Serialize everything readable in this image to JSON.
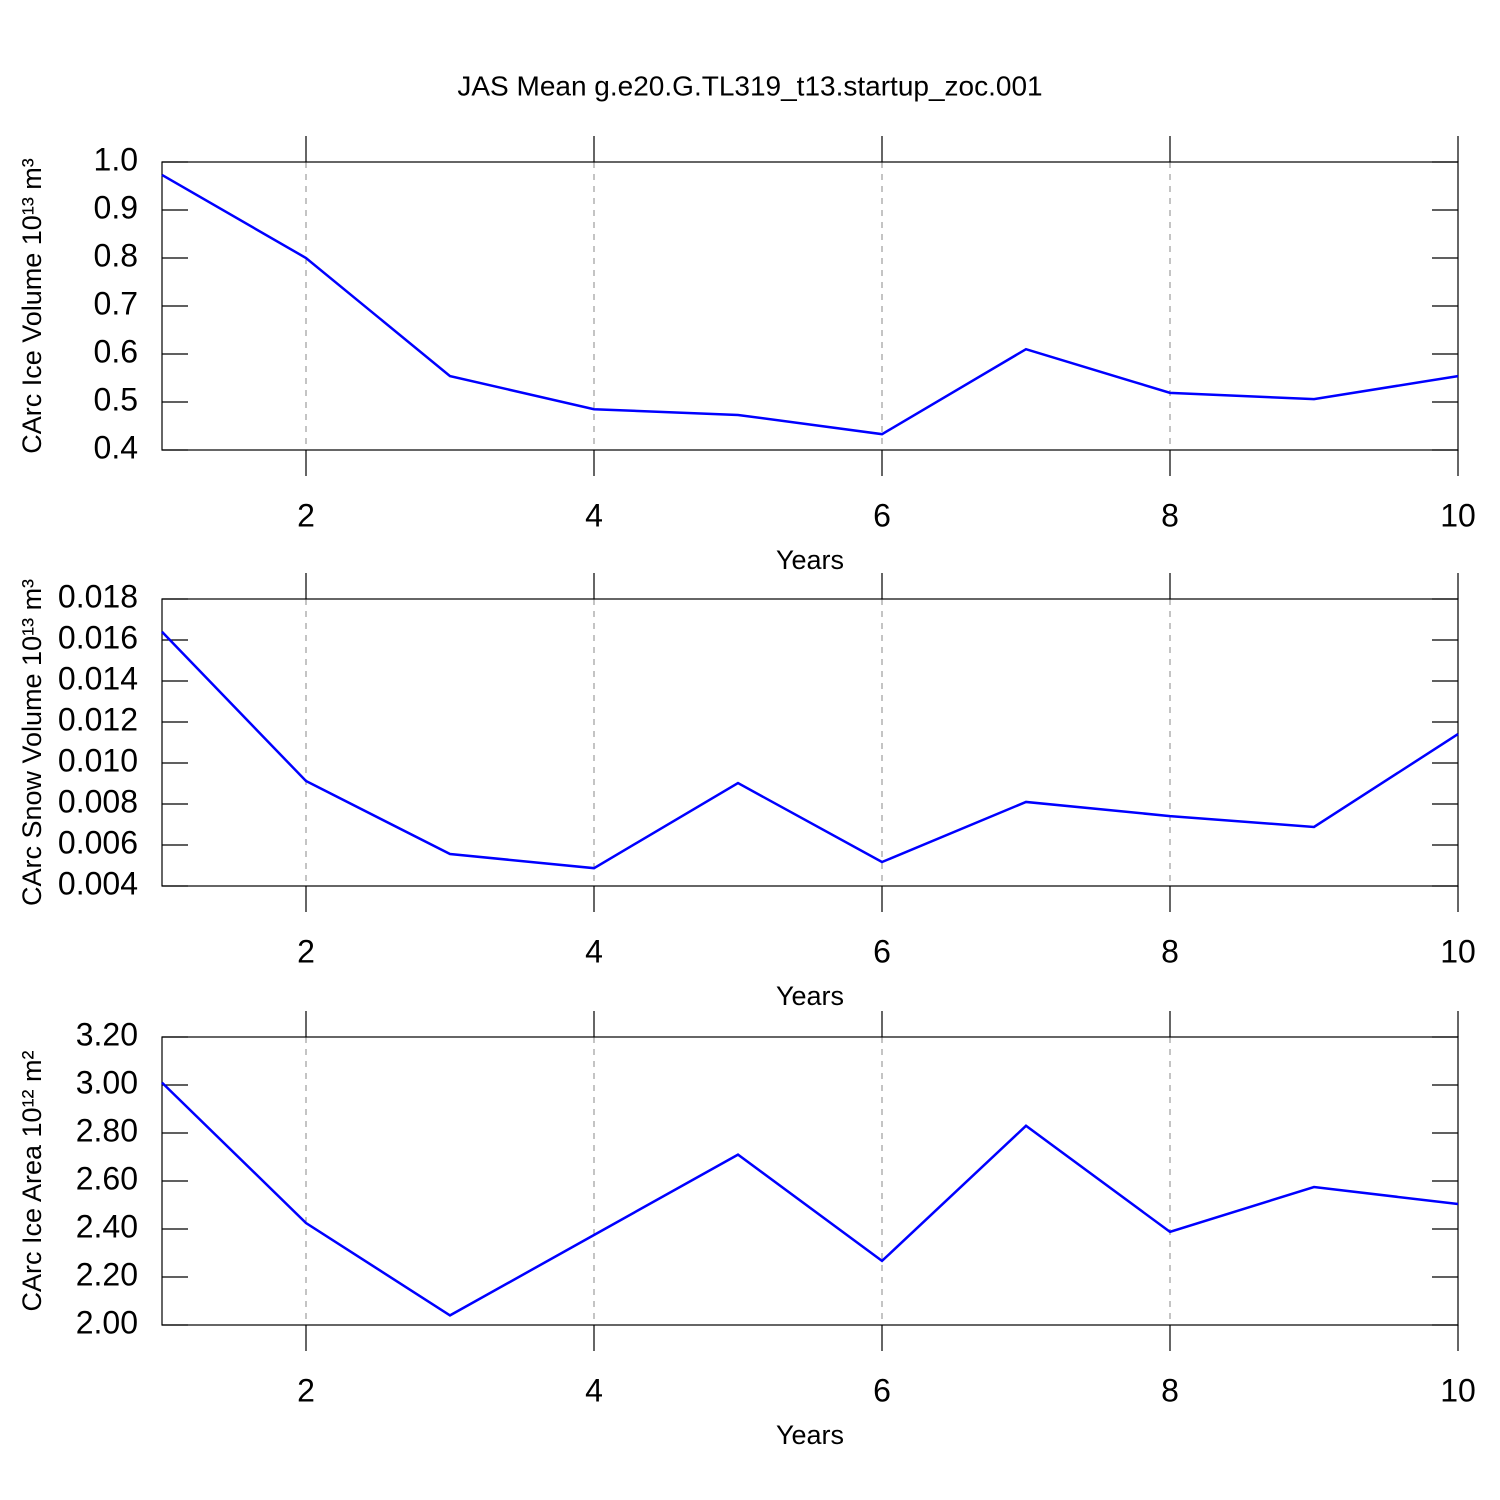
{
  "title": "JAS Mean g.e20.G.TL319_t13.startup_zoc.001",
  "chart_data": [
    {
      "type": "line",
      "xlabel": "Years",
      "ylabel": "CArc Ice Volume 10¹³ m³",
      "x": [
        1,
        2,
        3,
        4,
        5,
        6,
        7,
        8,
        9,
        10
      ],
      "series": [
        {
          "color": "#0000ff",
          "values": [
            0.973,
            0.8,
            0.554,
            0.485,
            0.473,
            0.433,
            0.61,
            0.519,
            0.506,
            0.554
          ]
        }
      ],
      "xlim": [
        1,
        10
      ],
      "xticks": [
        2,
        4,
        6,
        8,
        10
      ],
      "ylim": [
        0.4,
        1.0
      ],
      "yticks": [
        0.4,
        0.5,
        0.6,
        0.7,
        0.8,
        0.9,
        {
          "value": 1.0,
          "label": "1.0"
        }
      ],
      "grid": "x"
    },
    {
      "type": "line",
      "xlabel": "Years",
      "ylabel": "CArc Snow Volume 10¹³ m³",
      "x": [
        1,
        2,
        3,
        4,
        5,
        6,
        7,
        8,
        9,
        10
      ],
      "series": [
        {
          "color": "#0000ff",
          "values": [
            0.0164,
            0.00912,
            0.00556,
            0.00487,
            0.00902,
            0.00517,
            0.0081,
            0.00741,
            0.00688,
            0.01141
          ]
        }
      ],
      "xlim": [
        1,
        10
      ],
      "xticks": [
        2,
        4,
        6,
        8,
        10
      ],
      "ylim": [
        0.004,
        0.018
      ],
      "yticks": [
        0.004,
        0.006,
        0.008,
        {
          "value": 0.01,
          "label": "0.010"
        },
        0.012,
        0.014,
        0.016,
        0.018
      ],
      "grid": "x"
    },
    {
      "type": "line",
      "xlabel": "Years",
      "ylabel": "CArc Ice Area 10¹² m²",
      "x": [
        1,
        2,
        3,
        4,
        5,
        6,
        7,
        8,
        9,
        10
      ],
      "series": [
        {
          "color": "#0000ff",
          "values": [
            3.01,
            2.425,
            2.04,
            2.375,
            2.71,
            2.267,
            2.83,
            2.388,
            2.575,
            2.504
          ]
        }
      ],
      "xlim": [
        1,
        10
      ],
      "xticks": [
        2,
        4,
        6,
        8,
        10
      ],
      "ylim": [
        2.0,
        3.2
      ],
      "yticks": [
        {
          "value": 2.0,
          "label": "2.00"
        },
        {
          "value": 2.2,
          "label": "2.20"
        },
        {
          "value": 2.4,
          "label": "2.40"
        },
        {
          "value": 2.6,
          "label": "2.60"
        },
        {
          "value": 2.8,
          "label": "2.80"
        },
        {
          "value": 3.0,
          "label": "3.00"
        },
        {
          "value": 3.2,
          "label": "3.20"
        }
      ],
      "grid": "x"
    }
  ]
}
